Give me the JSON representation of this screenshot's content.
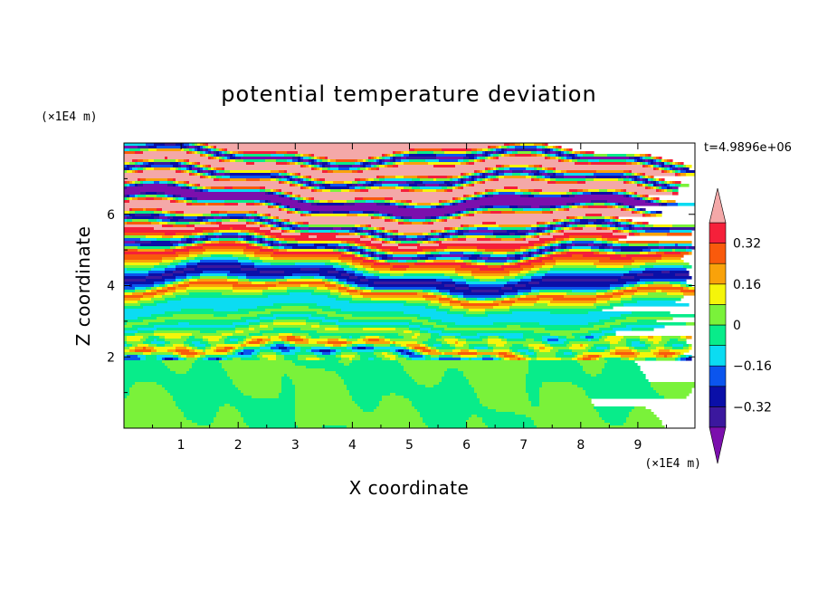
{
  "chart_data": {
    "type": "heatmap",
    "title": "potential temperature deviation",
    "xlabel": "X coordinate",
    "ylabel": "Z coordinate",
    "x_unit": "(×1E4 m)",
    "y_unit": "(×1E4 m)",
    "time_label": "t=4.9896e+06",
    "xlim": [
      0,
      10
    ],
    "ylim": [
      0,
      8
    ],
    "x_ticks": [
      1,
      2,
      3,
      4,
      5,
      6,
      7,
      8,
      9
    ],
    "y_ticks": [
      2,
      4,
      6
    ],
    "colorbar": {
      "levels": [
        -0.4,
        -0.32,
        -0.24,
        -0.16,
        -0.08,
        0,
        0.08,
        0.16,
        0.24,
        0.32,
        0.4
      ],
      "labels": [
        "0.32",
        "0.16",
        "0",
        "−0.16",
        "−0.32"
      ],
      "label_values": [
        0.32,
        0.16,
        0,
        -0.16,
        -0.32
      ],
      "colors": [
        "#7b0fad",
        "#3b189e",
        "#0a0fa8",
        "#0b55ee",
        "#0bdcf2",
        "#08ec8a",
        "#7af23a",
        "#f5f50a",
        "#f9a20a",
        "#f95a0c",
        "#f5203a",
        "#f4a8a8"
      ]
    },
    "bands": [
      {
        "z": 7.95,
        "v": 0.45
      },
      {
        "z": 7.75,
        "v": -0.45
      },
      {
        "z": 7.55,
        "v": 0.45
      },
      {
        "z": 7.35,
        "v": 0.45
      },
      {
        "z": 7.15,
        "v": -0.45
      },
      {
        "z": 6.95,
        "v": 0.45
      },
      {
        "z": 6.75,
        "v": 0.45
      },
      {
        "z": 6.55,
        "v": -0.45
      },
      {
        "z": 6.35,
        "v": -0.45
      },
      {
        "z": 6.15,
        "v": 0.45
      },
      {
        "z": 5.95,
        "v": 0.45
      },
      {
        "z": 5.75,
        "v": -0.45
      },
      {
        "z": 5.55,
        "v": 0.45
      },
      {
        "z": 5.35,
        "v": 0.3
      },
      {
        "z": 5.15,
        "v": -0.42
      },
      {
        "z": 4.95,
        "v": 0.38
      },
      {
        "z": 4.75,
        "v": 0.2
      },
      {
        "z": 4.55,
        "v": -0.1
      },
      {
        "z": 4.35,
        "v": -0.35
      },
      {
        "z": 4.15,
        "v": -0.2
      },
      {
        "z": 3.95,
        "v": 0.3
      },
      {
        "z": 3.75,
        "v": 0.05
      },
      {
        "z": 3.55,
        "v": -0.12
      },
      {
        "z": 3.35,
        "v": -0.1
      },
      {
        "z": 3.15,
        "v": 0.04
      },
      {
        "z": 2.95,
        "v": -0.12
      },
      {
        "z": 2.75,
        "v": 0.1
      },
      {
        "z": 2.55,
        "v": -0.05
      },
      {
        "z": 2.35,
        "v": 0.25
      },
      {
        "z": 2.15,
        "v": -0.2
      },
      {
        "z": 1.95,
        "v": 0.05
      },
      {
        "z": 1.75,
        "v": -0.03
      },
      {
        "z": 1.55,
        "v": 0.02
      },
      {
        "z": 1.35,
        "v": 0.01
      },
      {
        "z": 1.15,
        "v": 0.02
      },
      {
        "z": 0.95,
        "v": -0.01
      },
      {
        "z": 0.75,
        "v": 0.02
      },
      {
        "z": 0.55,
        "v": -0.02
      },
      {
        "z": 0.35,
        "v": 0.02
      },
      {
        "z": 0.15,
        "v": -0.02
      }
    ]
  }
}
